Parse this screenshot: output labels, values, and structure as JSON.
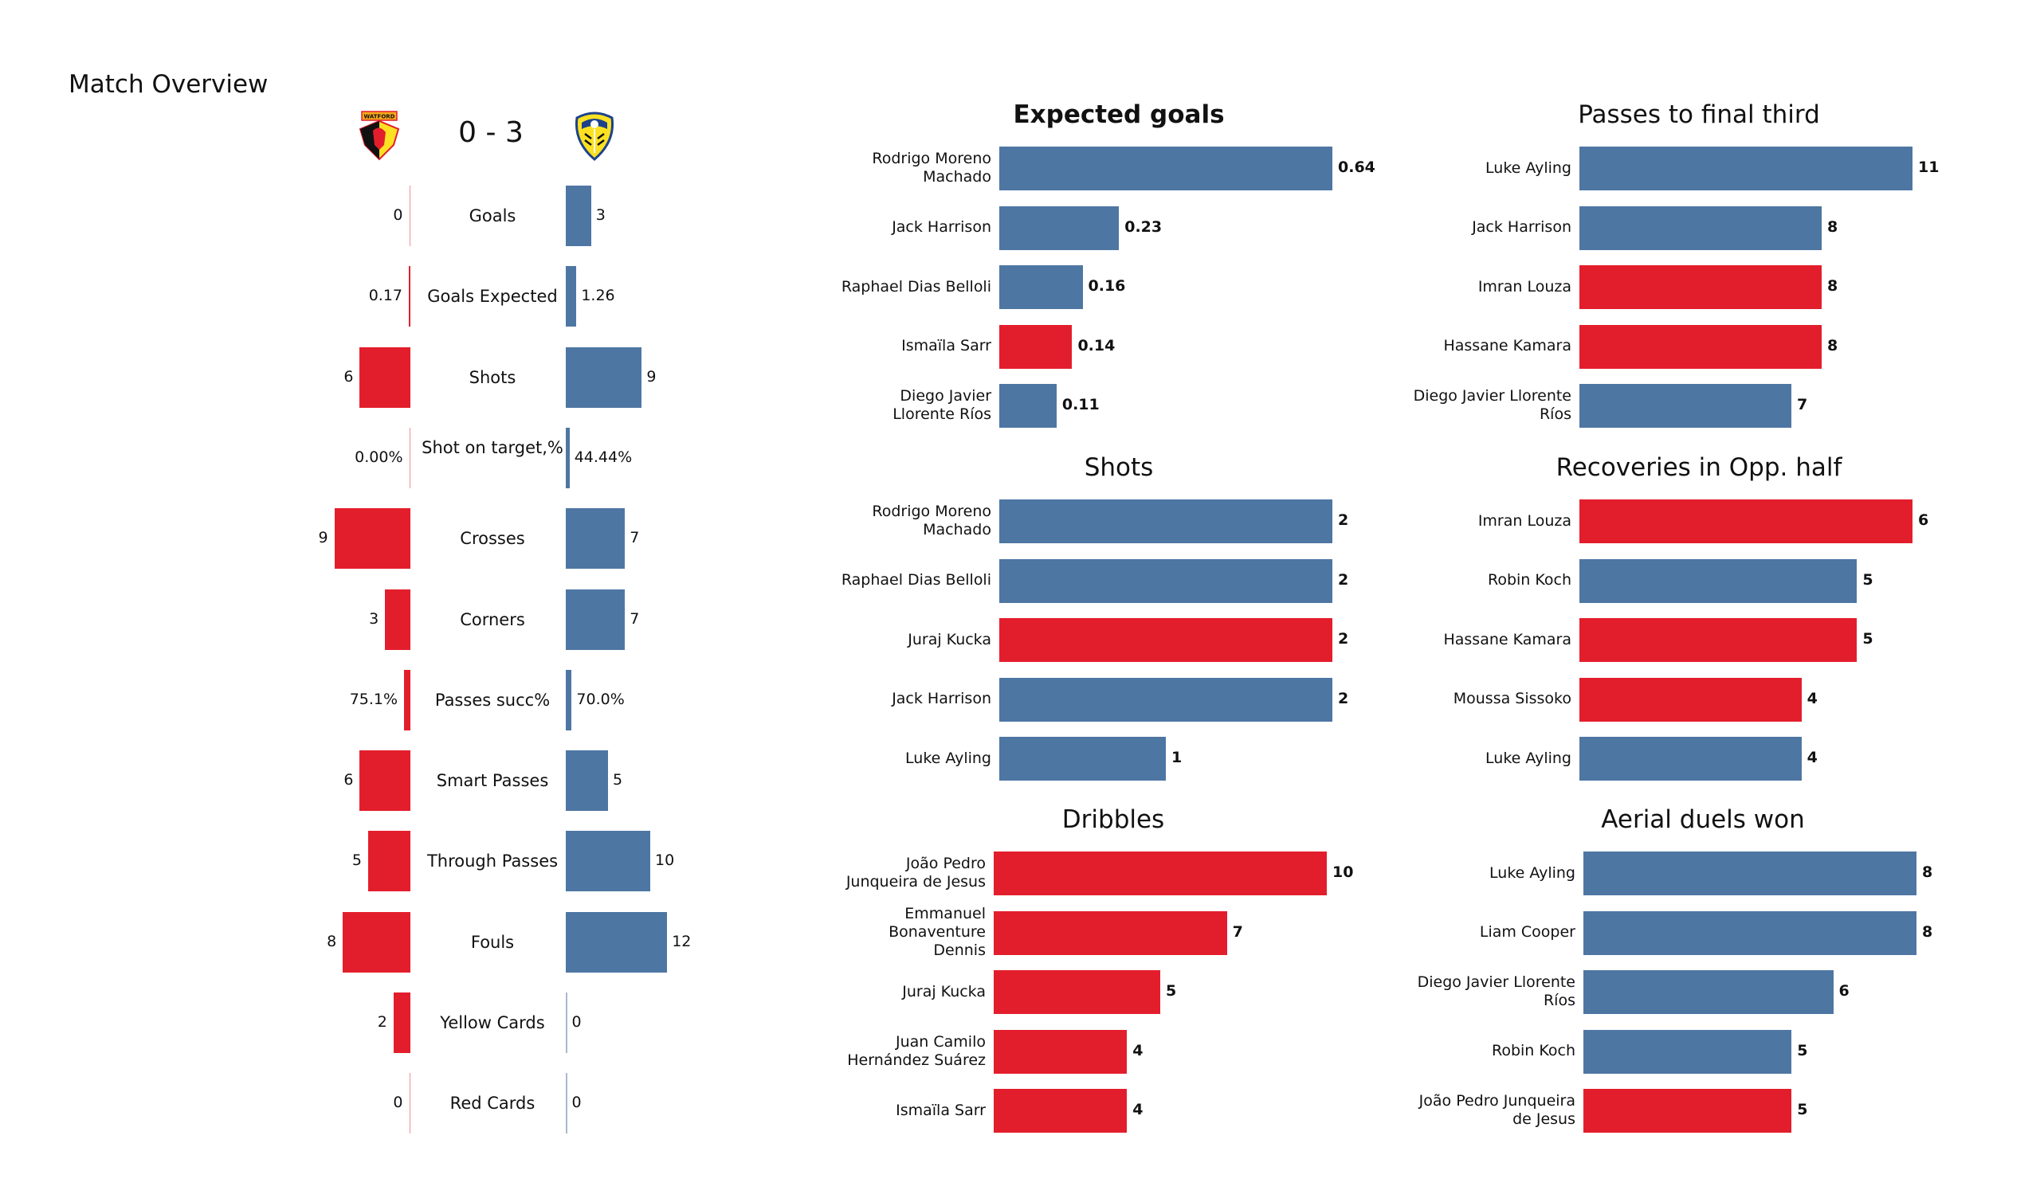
{
  "title": "Match Overview",
  "home_team": {
    "name": "Watford",
    "logo_text": "WATFORD",
    "color": "#e31e2c"
  },
  "away_team": {
    "name": "Leeds United",
    "color": "#4e76a3"
  },
  "score": "0 - 3",
  "comparison": [
    {
      "label": "Goals",
      "home": 0,
      "away": 3,
      "home_text": "0",
      "away_text": "3"
    },
    {
      "label": "Goals Expected",
      "home": 0.17,
      "away": 1.26,
      "home_text": "0.17",
      "away_text": "1.26"
    },
    {
      "label": "Shots",
      "home": 6,
      "away": 9,
      "home_text": "6",
      "away_text": "9"
    },
    {
      "label": "Shot on target,%",
      "home": 0.0,
      "away": 0.4444,
      "home_text": "0.00%",
      "away_text": "44.44%"
    },
    {
      "label": "Crosses",
      "home": 9,
      "away": 7,
      "home_text": "9",
      "away_text": "7"
    },
    {
      "label": "Corners",
      "home": 3,
      "away": 7,
      "home_text": "3",
      "away_text": "7"
    },
    {
      "label": "Passes succ%",
      "home": 0.751,
      "away": 0.7,
      "home_text": "75.1%",
      "away_text": "70.0%"
    },
    {
      "label": "Smart Passes",
      "home": 6,
      "away": 5,
      "home_text": "6",
      "away_text": "5"
    },
    {
      "label": "Through Passes",
      "home": 5,
      "away": 10,
      "home_text": "5",
      "away_text": "10"
    },
    {
      "label": "Fouls",
      "home": 8,
      "away": 12,
      "home_text": "8",
      "away_text": "12"
    },
    {
      "label": "Yellow Cards",
      "home": 2,
      "away": 0,
      "home_text": "2",
      "away_text": "0"
    },
    {
      "label": "Red Cards",
      "home": 0,
      "away": 0,
      "home_text": "0",
      "away_text": "0"
    }
  ],
  "chart_data": [
    {
      "type": "bar",
      "title": "Expected goals",
      "bold": true,
      "players": [
        {
          "name": "Rodrigo Moreno Machado",
          "lines": [
            "Rodrigo Moreno",
            "Machado"
          ],
          "value": 0.64,
          "label": "0.64",
          "team": "away"
        },
        {
          "name": "Jack Harrison",
          "lines": [
            "Jack Harrison"
          ],
          "value": 0.23,
          "label": "0.23",
          "team": "away"
        },
        {
          "name": "Raphael Dias Belloli",
          "lines": [
            "Raphael Dias Belloli"
          ],
          "value": 0.16,
          "label": "0.16",
          "team": "away"
        },
        {
          "name": "Ismaïla Sarr",
          "lines": [
            "Ismaïla Sarr"
          ],
          "value": 0.14,
          "label": "0.14",
          "team": "home"
        },
        {
          "name": "Diego Javier Llorente Ríos",
          "lines": [
            "Diego Javier",
            "Llorente Ríos"
          ],
          "value": 0.11,
          "label": "0.11",
          "team": "away"
        }
      ]
    },
    {
      "type": "bar",
      "title": "Passes to final third",
      "bold": false,
      "players": [
        {
          "name": "Luke Ayling",
          "lines": [
            "Luke Ayling"
          ],
          "value": 11,
          "label": "11",
          "team": "away"
        },
        {
          "name": "Jack Harrison",
          "lines": [
            "Jack Harrison"
          ],
          "value": 8,
          "label": "8",
          "team": "away"
        },
        {
          "name": "Imran Louza",
          "lines": [
            "Imran Louza"
          ],
          "value": 8,
          "label": "8",
          "team": "home"
        },
        {
          "name": "Hassane Kamara",
          "lines": [
            "Hassane Kamara"
          ],
          "value": 8,
          "label": "8",
          "team": "home"
        },
        {
          "name": "Diego Javier Llorente Ríos",
          "lines": [
            "Diego Javier Llorente",
            "Ríos"
          ],
          "value": 7,
          "label": "7",
          "team": "away"
        }
      ]
    },
    {
      "type": "bar",
      "title": "Shots",
      "bold": false,
      "players": [
        {
          "name": "Rodrigo Moreno Machado",
          "lines": [
            "Rodrigo Moreno",
            "Machado"
          ],
          "value": 2,
          "label": "2",
          "team": "away"
        },
        {
          "name": "Raphael Dias Belloli",
          "lines": [
            "Raphael Dias Belloli"
          ],
          "value": 2,
          "label": "2",
          "team": "away"
        },
        {
          "name": "Juraj Kucka",
          "lines": [
            "Juraj Kucka"
          ],
          "value": 2,
          "label": "2",
          "team": "home"
        },
        {
          "name": "Jack Harrison",
          "lines": [
            "Jack Harrison"
          ],
          "value": 2,
          "label": "2",
          "team": "away"
        },
        {
          "name": "Luke Ayling",
          "lines": [
            "Luke Ayling"
          ],
          "value": 1,
          "label": "1",
          "team": "away"
        }
      ]
    },
    {
      "type": "bar",
      "title": "Recoveries in Opp. half",
      "bold": false,
      "players": [
        {
          "name": "Imran Louza",
          "lines": [
            "Imran Louza"
          ],
          "value": 6,
          "label": "6",
          "team": "home"
        },
        {
          "name": "Robin Koch",
          "lines": [
            "Robin Koch"
          ],
          "value": 5,
          "label": "5",
          "team": "away"
        },
        {
          "name": "Hassane Kamara",
          "lines": [
            "Hassane Kamara"
          ],
          "value": 5,
          "label": "5",
          "team": "home"
        },
        {
          "name": "Moussa Sissoko",
          "lines": [
            "Moussa Sissoko"
          ],
          "value": 4,
          "label": "4",
          "team": "home"
        },
        {
          "name": "Luke Ayling",
          "lines": [
            "Luke Ayling"
          ],
          "value": 4,
          "label": "4",
          "team": "away"
        }
      ]
    },
    {
      "type": "bar",
      "title": "Dribbles",
      "bold": false,
      "players": [
        {
          "name": "João Pedro Junqueira de Jesus",
          "lines": [
            "João Pedro",
            "Junqueira de Jesus"
          ],
          "value": 10,
          "label": "10",
          "team": "home"
        },
        {
          "name": "Emmanuel Bonaventure Dennis",
          "lines": [
            "Emmanuel",
            "Bonaventure",
            "Dennis"
          ],
          "value": 7,
          "label": "7",
          "team": "home"
        },
        {
          "name": "Juraj Kucka",
          "lines": [
            "Juraj Kucka"
          ],
          "value": 5,
          "label": "5",
          "team": "home"
        },
        {
          "name": "Juan Camilo Hernández Suárez",
          "lines": [
            "Juan Camilo",
            "Hernández Suárez"
          ],
          "value": 4,
          "label": "4",
          "team": "home"
        },
        {
          "name": "Ismaïla Sarr",
          "lines": [
            "Ismaïla Sarr"
          ],
          "value": 4,
          "label": "4",
          "team": "home"
        }
      ]
    },
    {
      "type": "bar",
      "title": "Aerial duels won",
      "bold": false,
      "players": [
        {
          "name": "Luke Ayling",
          "lines": [
            "Luke Ayling"
          ],
          "value": 8,
          "label": "8",
          "team": "away"
        },
        {
          "name": "Liam Cooper",
          "lines": [
            "Liam Cooper"
          ],
          "value": 8,
          "label": "8",
          "team": "away"
        },
        {
          "name": "Diego Javier Llorente Ríos",
          "lines": [
            "Diego Javier Llorente",
            "Ríos"
          ],
          "value": 6,
          "label": "6",
          "team": "away"
        },
        {
          "name": "Robin Koch",
          "lines": [
            "Robin Koch"
          ],
          "value": 5,
          "label": "5",
          "team": "away"
        },
        {
          "name": "João Pedro Junqueira de Jesus",
          "lines": [
            "João Pedro Junqueira",
            "de Jesus"
          ],
          "value": 5,
          "label": "5",
          "team": "home"
        }
      ]
    }
  ]
}
